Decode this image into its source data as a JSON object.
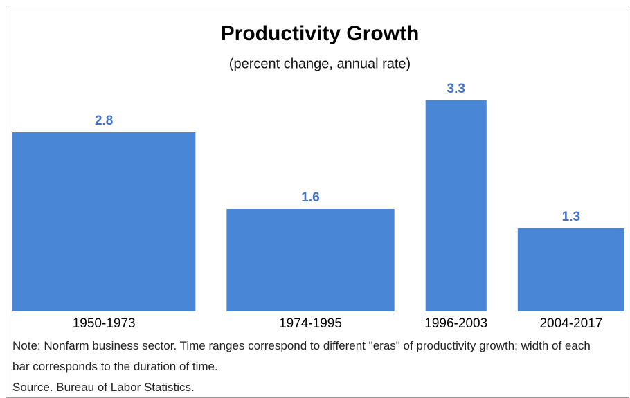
{
  "chart_data": {
    "type": "bar",
    "title": "Productivity Growth",
    "subtitle": "(percent change, annual rate)",
    "categories": [
      "1950-1973",
      "1974-1995",
      "1996-2003",
      "2004-2017"
    ],
    "values": [
      2.8,
      1.6,
      3.3,
      1.3
    ],
    "color": "#4a86d6",
    "label_color": "#4472c4",
    "note": "Note: Nonfarm business sector. Time ranges correspond to different \"eras\" of productivity growth; width of each bar corresponds to the duration of time.",
    "source": "Source. Bureau of Labor Statistics."
  }
}
